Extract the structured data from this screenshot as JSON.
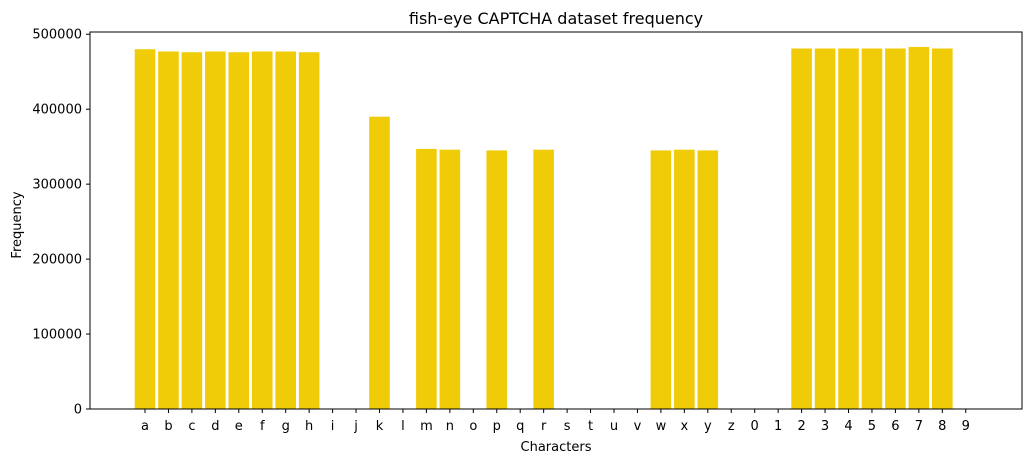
{
  "chart_data": {
    "type": "bar",
    "title": "fish-eye CAPTCHA dataset frequency",
    "xlabel": "Characters",
    "ylabel": "Frequency",
    "ylim": [
      0,
      503000
    ],
    "yticks": [
      "0",
      "100000",
      "200000",
      "300000",
      "400000",
      "500000"
    ],
    "grid": false,
    "bar_color": "#f0cb08",
    "categories": [
      "a",
      "b",
      "c",
      "d",
      "e",
      "f",
      "g",
      "h",
      "i",
      "j",
      "k",
      "l",
      "m",
      "n",
      "o",
      "p",
      "q",
      "r",
      "s",
      "t",
      "u",
      "v",
      "w",
      "x",
      "y",
      "z",
      "0",
      "1",
      "2",
      "3",
      "4",
      "5",
      "6",
      "7",
      "8",
      "9"
    ],
    "values": [
      480000,
      477000,
      476000,
      477000,
      476000,
      477000,
      477000,
      476000,
      0,
      0,
      390000,
      0,
      347000,
      346000,
      0,
      345000,
      0,
      346000,
      0,
      0,
      0,
      0,
      345000,
      346000,
      345000,
      0,
      0,
      0,
      481000,
      481000,
      481000,
      481000,
      481000,
      483000,
      481000,
      0
    ]
  }
}
